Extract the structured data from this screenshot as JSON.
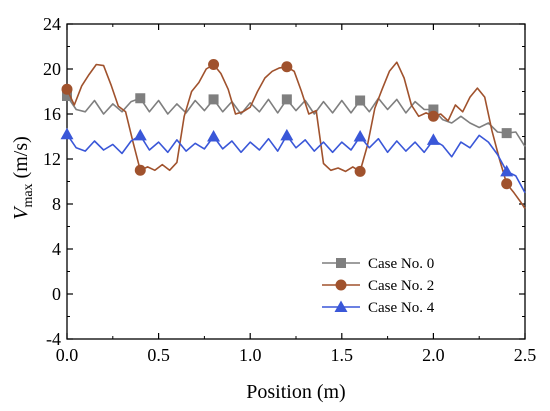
{
  "chart_data": {
    "type": "line",
    "xlabel": "Position (m)",
    "ylabel": {
      "main": "V",
      "sub": "max",
      "unit": " (m/s)"
    },
    "xlim": [
      0,
      2.5
    ],
    "ylim": [
      -4,
      24
    ],
    "xticks": [
      "0.0",
      "0.5",
      "1.0",
      "1.5",
      "2.0",
      "2.5"
    ],
    "yticks": [
      "-4",
      "0",
      "4",
      "8",
      "12",
      "16",
      "20",
      "24"
    ],
    "grid": false,
    "legend_position": "bottom-right",
    "series": [
      {
        "name": "Case No. 0",
        "color": "#7f7f7f",
        "marker": "square",
        "markers_x": [
          0.0,
          0.4,
          0.8,
          1.2,
          1.6,
          2.0,
          2.4
        ],
        "x": [
          0.0,
          0.05,
          0.1,
          0.15,
          0.2,
          0.25,
          0.3,
          0.35,
          0.4,
          0.45,
          0.5,
          0.55,
          0.6,
          0.65,
          0.7,
          0.75,
          0.8,
          0.85,
          0.9,
          0.95,
          1.0,
          1.05,
          1.1,
          1.15,
          1.2,
          1.25,
          1.3,
          1.35,
          1.4,
          1.45,
          1.5,
          1.55,
          1.6,
          1.65,
          1.7,
          1.75,
          1.8,
          1.85,
          1.9,
          1.95,
          2.0,
          2.05,
          2.1,
          2.15,
          2.2,
          2.25,
          2.3,
          2.35,
          2.4,
          2.45,
          2.5
        ],
        "y": [
          17.6,
          16.4,
          16.2,
          17.2,
          16.0,
          16.9,
          16.2,
          17.1,
          17.4,
          16.2,
          17.2,
          16.0,
          16.9,
          16.1,
          17.2,
          16.3,
          17.3,
          16.2,
          17.1,
          16.0,
          17.0,
          16.2,
          17.3,
          16.1,
          17.3,
          16.3,
          17.2,
          16.0,
          17.1,
          16.1,
          17.2,
          16.1,
          17.2,
          16.2,
          17.4,
          16.4,
          17.3,
          16.1,
          17.1,
          16.4,
          16.4,
          15.5,
          15.2,
          15.8,
          15.2,
          14.8,
          15.2,
          14.4,
          14.3,
          14.4,
          13.1
        ]
      },
      {
        "name": "Case No. 2",
        "color": "#a0522d",
        "marker": "circle",
        "markers_x": [
          0.0,
          0.4,
          0.8,
          1.2,
          1.6,
          2.0,
          2.4
        ],
        "x": [
          0.0,
          0.04,
          0.08,
          0.12,
          0.16,
          0.2,
          0.24,
          0.28,
          0.32,
          0.36,
          0.4,
          0.44,
          0.48,
          0.52,
          0.56,
          0.6,
          0.64,
          0.68,
          0.72,
          0.76,
          0.8,
          0.84,
          0.88,
          0.92,
          0.96,
          1.0,
          1.04,
          1.08,
          1.12,
          1.16,
          1.2,
          1.24,
          1.28,
          1.32,
          1.36,
          1.4,
          1.44,
          1.48,
          1.52,
          1.56,
          1.6,
          1.64,
          1.68,
          1.72,
          1.76,
          1.8,
          1.84,
          1.88,
          1.92,
          1.96,
          2.0,
          2.04,
          2.08,
          2.12,
          2.16,
          2.2,
          2.24,
          2.28,
          2.32,
          2.36,
          2.4,
          2.44,
          2.48,
          2.5
        ],
        "y": [
          18.2,
          16.8,
          18.5,
          19.5,
          20.4,
          20.3,
          18.6,
          16.7,
          16.2,
          13.5,
          11.0,
          11.3,
          11.0,
          11.5,
          11.0,
          11.7,
          15.8,
          18.0,
          18.8,
          20.0,
          20.4,
          19.6,
          18.2,
          16.0,
          16.2,
          16.6,
          18.0,
          19.2,
          19.8,
          20.1,
          20.2,
          19.8,
          18.0,
          16.0,
          16.3,
          11.6,
          11.0,
          11.2,
          10.9,
          11.3,
          10.9,
          13.2,
          16.5,
          18.2,
          19.8,
          20.6,
          19.2,
          16.8,
          15.8,
          16.1,
          15.8,
          16.0,
          15.4,
          16.8,
          16.2,
          17.5,
          18.3,
          17.5,
          14.5,
          12.0,
          9.8,
          9.0,
          8.1,
          7.6
        ]
      },
      {
        "name": "Case No. 4",
        "color": "#3a57d8",
        "marker": "triangle",
        "markers_x": [
          0.0,
          0.4,
          0.8,
          1.2,
          1.6,
          2.0,
          2.4
        ],
        "x": [
          0.0,
          0.05,
          0.1,
          0.15,
          0.2,
          0.25,
          0.3,
          0.35,
          0.4,
          0.45,
          0.5,
          0.55,
          0.6,
          0.65,
          0.7,
          0.75,
          0.8,
          0.85,
          0.9,
          0.95,
          1.0,
          1.05,
          1.1,
          1.15,
          1.2,
          1.25,
          1.3,
          1.35,
          1.4,
          1.45,
          1.5,
          1.55,
          1.6,
          1.65,
          1.7,
          1.75,
          1.8,
          1.85,
          1.9,
          1.95,
          2.0,
          2.05,
          2.1,
          2.15,
          2.2,
          2.25,
          2.3,
          2.35,
          2.4,
          2.45,
          2.5
        ],
        "y": [
          14.2,
          13.0,
          12.7,
          13.6,
          12.8,
          13.3,
          12.5,
          13.6,
          14.1,
          12.8,
          13.5,
          12.6,
          13.7,
          12.7,
          13.4,
          12.9,
          14.0,
          12.9,
          13.6,
          12.6,
          13.5,
          12.8,
          13.8,
          12.7,
          14.1,
          13.0,
          13.7,
          12.7,
          13.5,
          12.6,
          13.5,
          12.8,
          14.0,
          13.0,
          13.8,
          12.6,
          13.6,
          12.7,
          13.5,
          12.6,
          13.7,
          13.2,
          12.2,
          13.5,
          13.0,
          14.1,
          13.5,
          12.4,
          10.9,
          10.5,
          9.0
        ]
      }
    ]
  }
}
